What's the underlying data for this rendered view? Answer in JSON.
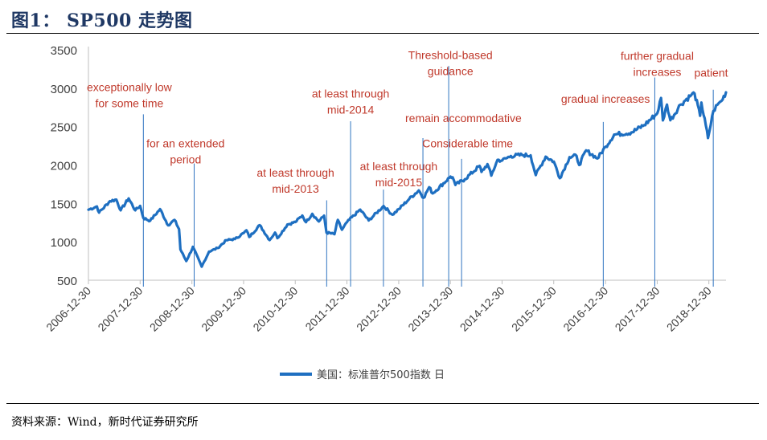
{
  "figure_title": "图1： SP500 走势图",
  "source_note": "资料来源：Wind，新时代证券研究所",
  "colors": {
    "series": "#1e6fc1",
    "annotation_text": "#c0392b",
    "annotation_line": "#2f74c0",
    "title": "#1f3864"
  },
  "chart_data": {
    "type": "line",
    "title": "",
    "xlabel": "",
    "ylabel": "",
    "ylim": [
      500,
      3500
    ],
    "yticks": [
      500,
      1000,
      1500,
      2000,
      2500,
      3000,
      3500
    ],
    "xlim": [
      "2006-12-30",
      "2019-04-30"
    ],
    "xticks": [
      "2006-12-30",
      "2007-12-30",
      "2008-12-30",
      "2009-12-30",
      "2010-12-30",
      "2011-12-30",
      "2012-12-30",
      "2013-12-30",
      "2014-12-30",
      "2015-12-30",
      "2016-12-30",
      "2017-12-30",
      "2018-12-30"
    ],
    "grid": false,
    "legend_position": "bottom",
    "series": [
      {
        "name": "美国：标准普尔500指数 日",
        "x": [
          "2006-12-30",
          "2007-02-28",
          "2007-03-15",
          "2007-05-31",
          "2007-07-15",
          "2007-08-15",
          "2007-10-10",
          "2007-11-26",
          "2007-12-30",
          "2008-01-22",
          "2008-03-10",
          "2008-05-19",
          "2008-07-15",
          "2008-08-29",
          "2008-09-30",
          "2008-10-10",
          "2008-11-20",
          "2008-12-31",
          "2009-01-06",
          "2009-03-09",
          "2009-04-30",
          "2009-06-30",
          "2009-08-31",
          "2009-10-30",
          "2009-12-31",
          "2010-01-19",
          "2010-02-08",
          "2010-04-23",
          "2010-07-02",
          "2010-08-09",
          "2010-08-26",
          "2010-11-05",
          "2010-12-31",
          "2011-02-18",
          "2011-03-16",
          "2011-04-29",
          "2011-06-15",
          "2011-07-22",
          "2011-08-08",
          "2011-10-03",
          "2011-10-27",
          "2011-11-25",
          "2011-12-31",
          "2012-04-02",
          "2012-06-01",
          "2012-09-14",
          "2012-11-15",
          "2012-12-31",
          "2013-03-15",
          "2013-05-21",
          "2013-06-24",
          "2013-08-02",
          "2013-08-27",
          "2013-12-31",
          "2014-01-15",
          "2014-02-03",
          "2014-04-11",
          "2014-07-24",
          "2014-08-07",
          "2014-09-18",
          "2014-10-15",
          "2014-11-28",
          "2014-12-31",
          "2015-03-02",
          "2015-05-21",
          "2015-07-20",
          "2015-08-25",
          "2015-11-03",
          "2015-12-31",
          "2016-02-11",
          "2016-04-20",
          "2016-06-08",
          "2016-06-27",
          "2016-08-15",
          "2016-11-03",
          "2016-12-31",
          "2017-03-01",
          "2017-06-30",
          "2017-09-29",
          "2017-12-31",
          "2018-01-26",
          "2018-02-08",
          "2018-03-09",
          "2018-04-02",
          "2018-06-12",
          "2018-08-29",
          "2018-09-20",
          "2018-10-29",
          "2018-11-07",
          "2018-12-24",
          "2019-01-31",
          "2019-02-28",
          "2019-03-29",
          "2019-04-30"
        ],
        "y": [
          1418,
          1460,
          1380,
          1530,
          1550,
          1410,
          1565,
          1410,
          1468,
          1310,
          1275,
          1425,
          1215,
          1285,
          1165,
          900,
          750,
          903,
          935,
          677,
          872,
          919,
          1021,
          1036,
          1115,
          1150,
          1063,
          1217,
          1023,
          1120,
          1048,
          1225,
          1258,
          1343,
          1256,
          1364,
          1265,
          1340,
          1120,
          1099,
          1285,
          1158,
          1258,
          1419,
          1278,
          1466,
          1353,
          1426,
          1560,
          1669,
          1573,
          1710,
          1630,
          1848,
          1840,
          1741,
          1815,
          1988,
          1910,
          2011,
          1862,
          2067,
          2059,
          2117,
          2130,
          2125,
          1868,
          2109,
          2044,
          1829,
          2102,
          2119,
          2000,
          2190,
          2085,
          2239,
          2396,
          2423,
          2519,
          2674,
          2873,
          2581,
          2786,
          2582,
          2786,
          2914,
          2931,
          2641,
          2813,
          2351,
          2704,
          2784,
          2834,
          2946
        ]
      }
    ],
    "annotations": [
      {
        "lines": [
          "exceptionally low",
          "for some time"
        ],
        "date": "2008-01-22",
        "text_date": "2007-10-15",
        "text_value": 2960,
        "line_top": 2660
      },
      {
        "lines": [
          "for an extended",
          "period"
        ],
        "date": "2009-01-15",
        "text_date": "2008-11-15",
        "text_value": 2230,
        "line_top": 2020
      },
      {
        "lines": [
          "at least through",
          "mid-2013"
        ],
        "date": "2011-08-09",
        "text_date": "2011-01-01",
        "text_value": 1850,
        "line_top": 1540
      },
      {
        "lines": [
          "at least through",
          "mid-2014"
        ],
        "date": "2012-01-25",
        "text_date": "2012-01-25",
        "text_value": 2880,
        "line_top": 2570
      },
      {
        "lines": [
          "at least through",
          "mid-2015"
        ],
        "date": "2012-09-13",
        "text_date": "2012-12-30",
        "text_value": 1930,
        "line_top": 1680
      },
      {
        "lines": [
          "Threshold-based",
          "guidance"
        ],
        "date": "2013-12-18",
        "text_date": "2013-12-30",
        "text_value": 3380,
        "line_top": 3290
      },
      {
        "lines": [
          "Considerable time"
        ],
        "date": "2014-03-19",
        "text_date": "2014-05-01",
        "text_value": 2230,
        "line_top": 2080
      },
      {
        "lines": [
          "remain accommodative"
        ],
        "date": "2013-06-19",
        "text_date": "2014-04-01",
        "text_value": 2560,
        "line_top": 2350
      },
      {
        "lines": [
          "gradual increases"
        ],
        "date": "2016-12-14",
        "text_date": "2016-12-30",
        "text_value": 2810,
        "line_top": 2560
      },
      {
        "lines": [
          "further gradual",
          "increases"
        ],
        "date": "2017-12-13",
        "text_date": "2017-12-30",
        "text_value": 3370,
        "line_top": 3140
      },
      {
        "lines": [
          "patient"
        ],
        "date": "2019-01-30",
        "text_date": "2019-01-15",
        "text_value": 3150,
        "line_top": 2980
      }
    ]
  }
}
